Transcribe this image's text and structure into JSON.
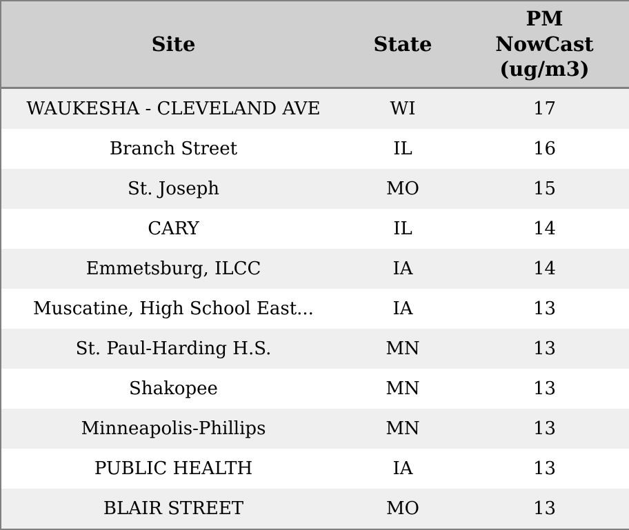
{
  "colors": {
    "header_bg": "#d0d0d0",
    "row_alt_bg": "#efefef",
    "row_bg": "#ffffff",
    "border": "#808080",
    "text": "#000000"
  },
  "header": {
    "site": "Site",
    "state": "State",
    "pm": "PM\nNowCast\n(ug/m3)"
  },
  "rows": [
    {
      "site": "WAUKESHA - CLEVELAND AVE",
      "state": "WI",
      "pm": "17"
    },
    {
      "site": "Branch Street",
      "state": "IL",
      "pm": "16"
    },
    {
      "site": "St. Joseph",
      "state": "MO",
      "pm": "15"
    },
    {
      "site": "CARY",
      "state": "IL",
      "pm": "14"
    },
    {
      "site": "Emmetsburg, ILCC",
      "state": "IA",
      "pm": "14"
    },
    {
      "site": "Muscatine, High School East...",
      "state": "IA",
      "pm": "13"
    },
    {
      "site": "St. Paul-Harding H.S.",
      "state": "MN",
      "pm": "13"
    },
    {
      "site": "Shakopee",
      "state": "MN",
      "pm": "13"
    },
    {
      "site": "Minneapolis-Phillips",
      "state": "MN",
      "pm": "13"
    },
    {
      "site": "PUBLIC HEALTH",
      "state": "IA",
      "pm": "13"
    },
    {
      "site": "BLAIR STREET",
      "state": "MO",
      "pm": "13"
    }
  ],
  "chart_data": {
    "type": "table",
    "columns": [
      "Site",
      "State",
      "PM NowCast (ug/m3)"
    ],
    "rows": [
      [
        "WAUKESHA - CLEVELAND AVE",
        "WI",
        17
      ],
      [
        "Branch Street",
        "IL",
        16
      ],
      [
        "St. Joseph",
        "MO",
        15
      ],
      [
        "CARY",
        "IL",
        14
      ],
      [
        "Emmetsburg, ILCC",
        "IA",
        14
      ],
      [
        "Muscatine, High School East...",
        "IA",
        13
      ],
      [
        "St. Paul-Harding H.S.",
        "MN",
        13
      ],
      [
        "Shakopee",
        "MN",
        13
      ],
      [
        "Minneapolis-Phillips",
        "MN",
        13
      ],
      [
        "PUBLIC HEALTH",
        "IA",
        13
      ],
      [
        "BLAIR STREET",
        "MO",
        13
      ]
    ]
  }
}
